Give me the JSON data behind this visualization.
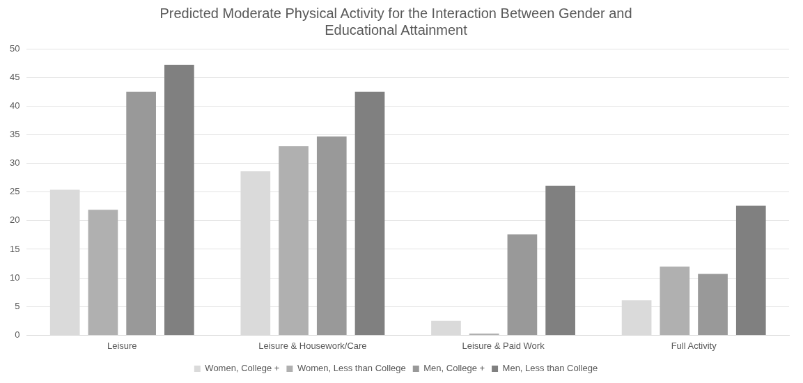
{
  "chart_data": {
    "type": "bar",
    "title": "Predicted Moderate Physical Activity for the Interaction Between Gender and Educational Attainment",
    "categories": [
      "Leisure",
      "Leisure & Housework/Care",
      "Leisure & Paid Work",
      "Full Activity"
    ],
    "series": [
      {
        "name": "Women, College +",
        "color": "#dadada",
        "values": [
          25.4,
          28.6,
          2.5,
          6.1
        ]
      },
      {
        "name": "Women, Less than College",
        "color": "#b0b0b0",
        "values": [
          21.9,
          33.0,
          0.3,
          12.0
        ]
      },
      {
        "name": "Men, College +",
        "color": "#999999",
        "values": [
          42.5,
          34.7,
          17.6,
          10.7
        ]
      },
      {
        "name": "Men, Less than College",
        "color": "#808080",
        "values": [
          47.2,
          42.5,
          26.1,
          22.6
        ]
      }
    ],
    "ylim": [
      0,
      50
    ],
    "yticks": [
      0,
      5,
      10,
      15,
      20,
      25,
      30,
      35,
      40,
      45,
      50
    ],
    "grid": "y",
    "legend": "bottom"
  }
}
